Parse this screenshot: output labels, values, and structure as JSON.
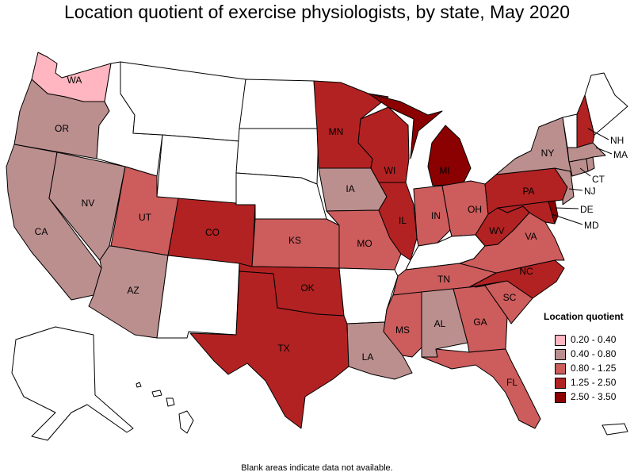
{
  "title": "Location quotient of exercise physiologists, by state, May 2020",
  "footnote": "Blank areas indicate data not available.",
  "legend": {
    "title": "Location quotient",
    "items": [
      {
        "label": "0.20 - 0.40",
        "color": "#ffb6c1"
      },
      {
        "label": "0.40 - 0.80",
        "color": "#bc8f8f"
      },
      {
        "label": "0.80 - 1.25",
        "color": "#cd5c5c"
      },
      {
        "label": "1.25 - 2.50",
        "color": "#b22222"
      },
      {
        "label": "2.50 - 3.50",
        "color": "#8b0000"
      }
    ]
  },
  "no_data_color": "#ffffff",
  "states": {
    "WA": {
      "label": "WA",
      "class": 0
    },
    "OR": {
      "label": "OR",
      "class": 1
    },
    "CA": {
      "label": "CA",
      "class": 1
    },
    "NV": {
      "label": "NV",
      "class": 1
    },
    "AZ": {
      "label": "AZ",
      "class": 1
    },
    "UT": {
      "label": "UT",
      "class": 2
    },
    "CO": {
      "label": "CO",
      "class": 3
    },
    "TX": {
      "label": "TX",
      "class": 3
    },
    "OK": {
      "label": "OK",
      "class": 3
    },
    "KS": {
      "label": "KS",
      "class": 2
    },
    "MN": {
      "label": "MN",
      "class": 3
    },
    "IA": {
      "label": "IA",
      "class": 1
    },
    "MO": {
      "label": "MO",
      "class": 2
    },
    "LA": {
      "label": "LA",
      "class": 1
    },
    "WI": {
      "label": "WI",
      "class": 3
    },
    "IL": {
      "label": "IL",
      "class": 3
    },
    "MI": {
      "label": "MI",
      "class": 4
    },
    "IN": {
      "label": "IN",
      "class": 2
    },
    "OH": {
      "label": "OH",
      "class": 2
    },
    "TN": {
      "label": "TN",
      "class": 2
    },
    "MS": {
      "label": "MS",
      "class": 2
    },
    "AL": {
      "label": "AL",
      "class": 1
    },
    "GA": {
      "label": "GA",
      "class": 2
    },
    "FL": {
      "label": "FL",
      "class": 2
    },
    "SC": {
      "label": "SC",
      "class": 2
    },
    "NC": {
      "label": "NC",
      "class": 3
    },
    "VA": {
      "label": "VA",
      "class": 2
    },
    "WV": {
      "label": "WV",
      "class": 3
    },
    "PA": {
      "label": "PA",
      "class": 3
    },
    "NY": {
      "label": "NY",
      "class": 1
    },
    "NH": {
      "label": "NH",
      "class": 3
    },
    "MA": {
      "label": "MA",
      "class": 1
    },
    "CT": {
      "label": "CT",
      "class": 1
    },
    "NJ": {
      "label": "NJ",
      "class": 1
    },
    "DE": {
      "label": "DE",
      "class": 4
    },
    "MD": {
      "label": "MD",
      "class": 3
    },
    "VT": {
      "label": "",
      "class": null
    },
    "ME": {
      "label": "",
      "class": null
    },
    "RI": {
      "label": "",
      "class": 1
    },
    "ID": {
      "label": "",
      "class": null
    },
    "MT": {
      "label": "",
      "class": null
    },
    "WY": {
      "label": "",
      "class": null
    },
    "ND": {
      "label": "",
      "class": null
    },
    "SD": {
      "label": "",
      "class": null
    },
    "NE": {
      "label": "",
      "class": null
    },
    "NM": {
      "label": "",
      "class": null
    },
    "AR": {
      "label": "",
      "class": null
    },
    "KY": {
      "label": "",
      "class": null
    },
    "AK": {
      "label": "",
      "class": null
    },
    "HI": {
      "label": "",
      "class": null
    },
    "PR": {
      "label": "",
      "class": null
    }
  }
}
